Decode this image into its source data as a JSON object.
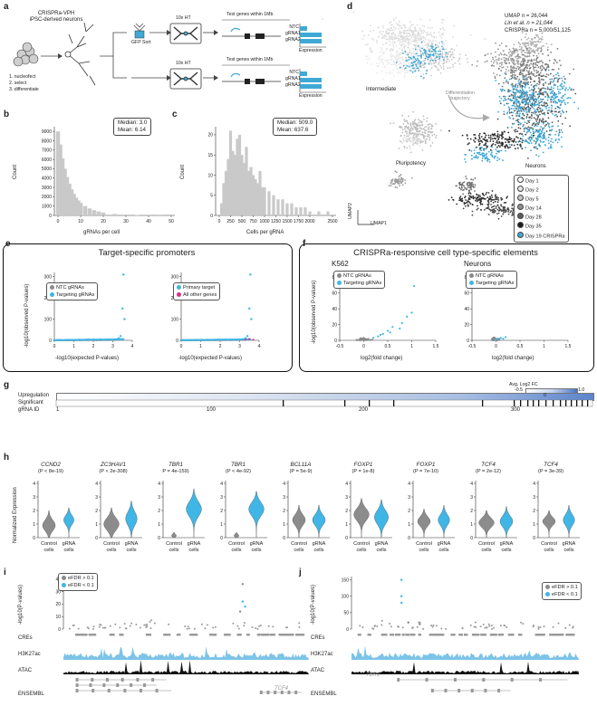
{
  "panel_letters": {
    "a": "a",
    "b": "b",
    "c": "c",
    "d": "d",
    "e": "e",
    "f": "f",
    "g": "g",
    "h": "h",
    "i": "i",
    "j": "j"
  },
  "panel_a": {
    "title_line1": "CRISPRa-VPH",
    "title_line2": "iPSC-derived neurons",
    "steps": [
      "1. nucleofect",
      "2. select",
      "3. differentiate"
    ],
    "gfp_sort": "GFP Sort",
    "tenx": "10x HT",
    "test_genes": "Test genes within 1Mb",
    "bar_labels": [
      "NTC",
      "gRNA1",
      "gRNA2"
    ],
    "expression": "Expression"
  },
  "panel_b": {
    "stats_line1": "Median: 3.0",
    "stats_line2": "Mean: 6.14",
    "ylabel": "Count",
    "xlabel": "gRNAs per cell",
    "yticks": [
      "0",
      "1000",
      "2000",
      "3000",
      "4000",
      "5000",
      "6000",
      "7000",
      "8000",
      "9000"
    ],
    "xticks": [
      "0",
      "10",
      "20",
      "30",
      "40",
      "50"
    ]
  },
  "panel_c": {
    "stats_line1": "Median: 509.0",
    "stats_line2": "Mean: 637.6",
    "ylabel": "Count",
    "xlabel": "Cells per gRNA",
    "yticks": [
      "0",
      "5",
      "10",
      "15",
      "20"
    ],
    "xticks": [
      "0",
      "250",
      "500",
      "750",
      "1000",
      "1250",
      "1500",
      "1750",
      "2000",
      "2500"
    ]
  },
  "panel_d": {
    "stats_line1": "UMAP n = 26,044",
    "stats_line2": "Lin et al. n = 21,044",
    "stats_line3": "CRISPRa n = 5,000/51,125",
    "labels": {
      "intermediate": "Intermediate",
      "trajectory": "Differentiation trajectory",
      "pluripotency": "Pluripotency",
      "neurons": "Neurons"
    },
    "axis_x": "UMAP1",
    "axis_y": "UMAP2",
    "legend": [
      {
        "label": "Day 1",
        "color": "#ffffff"
      },
      {
        "label": "Day 2",
        "color": "#e3e3e3"
      },
      {
        "label": "Day 5",
        "color": "#c4c4c4"
      },
      {
        "label": "Day 14",
        "color": "#8f8f8f"
      },
      {
        "label": "Day 28",
        "color": "#5c5c5c"
      },
      {
        "label": "Day 35",
        "color": "#1c1c1c"
      },
      {
        "label": "Day 19 CRISPRa",
        "color": "#3fa9d6"
      }
    ]
  },
  "panel_e": {
    "title": "Target-specific promoters",
    "ylabel": "-log10(observed P-values)",
    "xlabel": "-log10(expected P-values)",
    "legend_left": [
      {
        "label": "NTC gRNAs",
        "color": "#8a8a8a"
      },
      {
        "label": "Targeting gRNAs",
        "color": "#3fb6e6"
      }
    ],
    "legend_right": [
      {
        "label": "Primary target",
        "color": "#3fb6e6"
      },
      {
        "label": "All other genes",
        "color": "#d6338a"
      }
    ],
    "yticks": [
      "0",
      "100",
      "200",
      "300"
    ],
    "xticks": [
      "0",
      "1",
      "2",
      "3",
      "4"
    ]
  },
  "panel_f": {
    "title": "CRISPRa-responsive cell type-specific elements",
    "sub_left": "K562",
    "sub_right": "Neurons",
    "ylabel": "-log10(observed P-values)",
    "xlabel": "log2(fold change)",
    "legend": [
      {
        "label": "NTC gRNAs",
        "color": "#8a8a8a"
      },
      {
        "label": "Targeting gRNAs",
        "color": "#3fb6e6"
      }
    ],
    "yticks": [
      "0",
      "20",
      "40",
      "60",
      "80"
    ],
    "xticks": [
      "-0.5",
      "0",
      "0.5",
      "1",
      "1.5"
    ]
  },
  "panel_g": {
    "rows": [
      "Upregulation",
      "Significant",
      "gRNA ID"
    ],
    "legend_title": "Avg. Log2 FC",
    "legend_ticks": [
      "-0.5",
      "0",
      "1.0"
    ],
    "ticks": [
      "1",
      "100",
      "200",
      "300"
    ]
  },
  "panel_h": {
    "ylabel": "Normalized Expression",
    "genes": [
      {
        "gene": "CCND2",
        "p": "(P < 8e-19)"
      },
      {
        "gene": "ZC3HAV1",
        "p": "(P < 2e-308)"
      },
      {
        "gene": "TBR1",
        "p": "P = 4e-159)"
      },
      {
        "gene": "TBR1",
        "p": "(P < 4e-92)"
      },
      {
        "gene": "BCL11A",
        "p": "(P = 5e-9)"
      },
      {
        "gene": "FOXP1",
        "p": "(P = 1e-8)"
      },
      {
        "gene": "FOXP1",
        "p": "(P = 7e-10)"
      },
      {
        "gene": "TCF4",
        "p": "(P = 2e-12)"
      },
      {
        "gene": "TCF4",
        "p": "(P = 3e-39)"
      }
    ],
    "yticks": [
      "0",
      "1",
      "2",
      "3",
      "4"
    ],
    "x_control": "Control",
    "x_grna": "gRNA",
    "x_cells": "cells"
  },
  "panel_i": {
    "ylabel": "-log10(P-values)",
    "legend": [
      {
        "label": "eFDR > 0.1",
        "color": "#8a8a8a"
      },
      {
        "label": "eFDR < 0.1",
        "color": "#3fb6e6"
      }
    ],
    "tracks": [
      "CREs",
      "H3K27ac",
      "ATAC",
      "ENSEMBL"
    ],
    "gene_label": "TCF4",
    "yticks": [
      "0",
      "10",
      "20",
      "30",
      "40"
    ]
  },
  "panel_j": {
    "ylabel": "-log10(P-values)",
    "legend": [
      {
        "label": "eFDR > 0.1",
        "color": "#8a8a8a"
      },
      {
        "label": "eFDR < 0.1",
        "color": "#3fb6e6"
      }
    ],
    "tracks": [
      "CREs",
      "H3K27ac",
      "ATAC",
      "ENSEMBL"
    ],
    "gene_label": "TBR1",
    "yticks": [
      "0",
      "50",
      "100",
      "150"
    ]
  },
  "chart_data": [
    {
      "type": "bar",
      "title": "",
      "xlabel": "gRNAs per cell",
      "ylabel": "Count",
      "x": [
        0,
        1,
        2,
        3,
        4,
        5,
        6,
        7,
        8,
        9,
        10,
        12,
        14,
        16,
        18,
        20,
        25,
        30,
        35,
        40,
        45,
        50
      ],
      "values": [
        9000,
        7600,
        6100,
        5000,
        4100,
        3400,
        2800,
        2300,
        1900,
        1600,
        1350,
        1000,
        750,
        560,
        420,
        320,
        160,
        90,
        50,
        30,
        15,
        8
      ],
      "ylim": [
        0,
        9500
      ],
      "xlim": [
        0,
        50
      ]
    },
    {
      "type": "bar",
      "title": "",
      "xlabel": "Cells per gRNA",
      "ylabel": "Count",
      "x": [
        50,
        100,
        150,
        200,
        250,
        300,
        350,
        400,
        450,
        500,
        550,
        600,
        650,
        700,
        750,
        800,
        850,
        900,
        950,
        1000,
        1100,
        1200,
        1300,
        1400,
        1500,
        1600,
        1700,
        1800,
        1900,
        2000,
        2200,
        2400
      ],
      "values": [
        3,
        8,
        11,
        14,
        21,
        16,
        15,
        19,
        20,
        15,
        13,
        17,
        11,
        12,
        10,
        9,
        8,
        11,
        7,
        7,
        6,
        5,
        4,
        4,
        3,
        3,
        2,
        2,
        2,
        1,
        1,
        1
      ],
      "ylim": [
        0,
        22
      ],
      "xlim": [
        0,
        2500
      ]
    },
    {
      "type": "scatter",
      "title": "Target-specific promoters",
      "xlabel": "-log10(expected P-values)",
      "ylabel": "-log10(observed P-values)",
      "series": [
        {
          "name": "Targeting gRNAs",
          "x": [
            3.3,
            3.4,
            3.5,
            3.6,
            3.55
          ],
          "y": [
            10,
            20,
            150,
            100,
            310
          ]
        },
        {
          "name": "NTC gRNAs",
          "x": [
            2.8,
            3.0
          ],
          "y": [
            3,
            5
          ]
        }
      ],
      "xlim": [
        0,
        4
      ],
      "ylim": [
        0,
        320
      ]
    },
    {
      "type": "scatter",
      "title": "K562",
      "xlabel": "log2(fold change)",
      "ylabel": "-log10(observed P-values)",
      "series": [
        {
          "name": "Targeting gRNAs",
          "x": [
            0.2,
            0.3,
            0.35,
            0.4,
            0.5,
            0.55,
            0.6,
            0.75,
            0.8,
            0.9,
            1.0,
            1.05
          ],
          "y": [
            3,
            5,
            7,
            8,
            12,
            10,
            17,
            15,
            22,
            30,
            35,
            69
          ]
        }
      ],
      "xlim": [
        -0.5,
        1.5
      ],
      "ylim": [
        0,
        85
      ]
    },
    {
      "type": "scatter",
      "title": "Neurons",
      "xlabel": "log2(fold change)",
      "ylabel": "-log10(observed P-values)",
      "series": [
        {
          "name": "Targeting gRNAs",
          "x": [
            0.0,
            0.05,
            0.1,
            0.15,
            0.2
          ],
          "y": [
            1,
            2,
            3,
            2,
            4
          ]
        }
      ],
      "xlim": [
        -0.5,
        1.5
      ],
      "ylim": [
        0,
        85
      ]
    }
  ]
}
